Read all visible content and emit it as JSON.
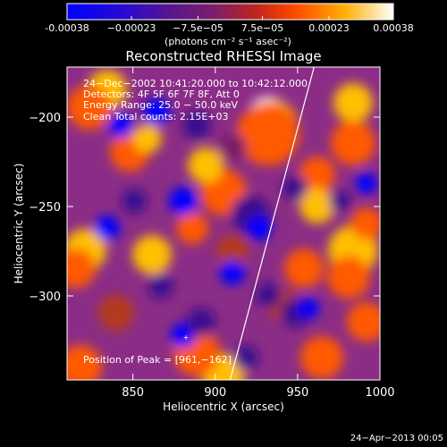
{
  "colorbar": {
    "ticks": [
      {
        "value": -0.00038,
        "label": "-0.00038"
      },
      {
        "value": -0.00023,
        "label": "−0.00023"
      },
      {
        "value": -7.5e-05,
        "label": "−7.5e−05"
      },
      {
        "value": 7.5e-05,
        "label": "7.5e−05"
      },
      {
        "value": 0.00023,
        "label": "0.00023"
      },
      {
        "value": 0.00038,
        "label": "0.00038"
      }
    ],
    "range": [
      -0.00038,
      0.00038
    ],
    "unit_label": "(photons cm⁻² s⁻¹ asec⁻²)"
  },
  "chart_data": {
    "type": "heatmap",
    "title": "Reconstructed RHESSI Image",
    "xlabel": "Heliocentric X (arcsec)",
    "ylabel": "Heliocentric Y (arcsec)",
    "xlim": [
      810,
      1000
    ],
    "ylim": [
      -347,
      -172
    ],
    "xticks": [
      850,
      900,
      950,
      1000
    ],
    "yticks": [
      -200,
      -250,
      -300
    ],
    "peak": {
      "x": 961,
      "y": -162
    },
    "limb_line": [
      {
        "x": 909,
        "y": -347
      },
      {
        "x": 960,
        "y": -172
      }
    ],
    "colormap": [
      "#0000ff",
      "#3b0f8f",
      "#7a1f6a",
      "#b33a1f",
      "#ff5a00",
      "#ffc000",
      "#ffffff"
    ],
    "background_color": "#8b2d86"
  },
  "info": {
    "line1": "24−Dec−2002 10:41:20.000 to 10:42:12.000",
    "line2": "Detectors: 4F 5F 6F 7F 8F, Att 0",
    "line3": "Energy Range: 25.0 − 50.0 keV",
    "line4": "Clean    Total counts: 2.15E+03"
  },
  "peak_label": "Position of Peak = [961,−162]",
  "footer_date": "24−Apr−2013 00:05"
}
